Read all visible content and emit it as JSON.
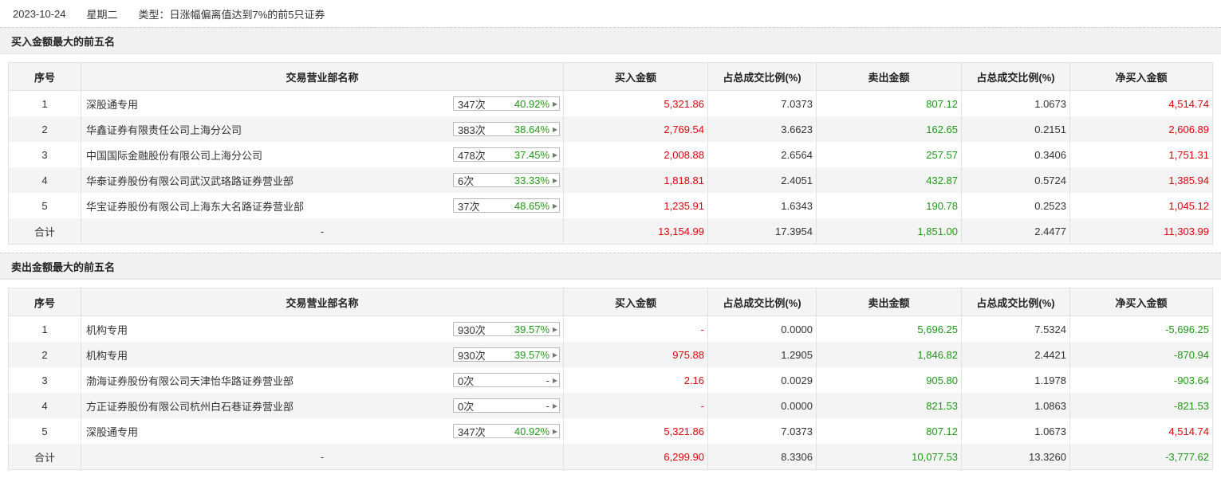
{
  "header": {
    "date": "2023-10-24",
    "weekday": "星期二",
    "type_text": "类型：日涨幅偏离值达到7%的前5只证券"
  },
  "columns": [
    "序号",
    "交易营业部名称",
    "买入金额",
    "占总成交比例(%)",
    "卖出金额",
    "占总成交比例(%)",
    "净买入金额"
  ],
  "buy_section": {
    "title": "买入金额最大的前五名",
    "rows": [
      {
        "seq": "1",
        "name": "深股通专用",
        "count": "347次",
        "pct": "40.92%",
        "buy": "5,321.86",
        "buy_ratio": "7.0373",
        "sell": "807.12",
        "sell_ratio": "1.0673",
        "net": "4,514.74"
      },
      {
        "seq": "2",
        "name": "华鑫证券有限责任公司上海分公司",
        "count": "383次",
        "pct": "38.64%",
        "buy": "2,769.54",
        "buy_ratio": "3.6623",
        "sell": "162.65",
        "sell_ratio": "0.2151",
        "net": "2,606.89"
      },
      {
        "seq": "3",
        "name": "中国国际金融股份有限公司上海分公司",
        "count": "478次",
        "pct": "37.45%",
        "buy": "2,008.88",
        "buy_ratio": "2.6564",
        "sell": "257.57",
        "sell_ratio": "0.3406",
        "net": "1,751.31"
      },
      {
        "seq": "4",
        "name": "华泰证券股份有限公司武汉武珞路证券营业部",
        "count": "6次",
        "pct": "33.33%",
        "buy": "1,818.81",
        "buy_ratio": "2.4051",
        "sell": "432.87",
        "sell_ratio": "0.5724",
        "net": "1,385.94"
      },
      {
        "seq": "5",
        "name": "华宝证券股份有限公司上海东大名路证券营业部",
        "count": "37次",
        "pct": "48.65%",
        "buy": "1,235.91",
        "buy_ratio": "1.6343",
        "sell": "190.78",
        "sell_ratio": "0.2523",
        "net": "1,045.12"
      }
    ],
    "total": {
      "label": "合计",
      "name": "-",
      "buy": "13,154.99",
      "buy_ratio": "17.3954",
      "sell": "1,851.00",
      "sell_ratio": "2.4477",
      "net": "11,303.99"
    }
  },
  "sell_section": {
    "title": "卖出金额最大的前五名",
    "rows": [
      {
        "seq": "1",
        "name": "机构专用",
        "count": "930次",
        "pct": "39.57%",
        "buy": "-",
        "buy_ratio": "0.0000",
        "sell": "5,696.25",
        "sell_ratio": "7.5324",
        "net": "-5,696.25"
      },
      {
        "seq": "2",
        "name": "机构专用",
        "count": "930次",
        "pct": "39.57%",
        "buy": "975.88",
        "buy_ratio": "1.2905",
        "sell": "1,846.82",
        "sell_ratio": "2.4421",
        "net": "-870.94"
      },
      {
        "seq": "3",
        "name": "渤海证券股份有限公司天津怡华路证券营业部",
        "count": "0次",
        "pct": "-",
        "buy": "2.16",
        "buy_ratio": "0.0029",
        "sell": "905.80",
        "sell_ratio": "1.1978",
        "net": "-903.64"
      },
      {
        "seq": "4",
        "name": "方正证券股份有限公司杭州白石巷证券营业部",
        "count": "0次",
        "pct": "-",
        "buy": "-",
        "buy_ratio": "0.0000",
        "sell": "821.53",
        "sell_ratio": "1.0863",
        "net": "-821.53"
      },
      {
        "seq": "5",
        "name": "深股通专用",
        "count": "347次",
        "pct": "40.92%",
        "buy": "5,321.86",
        "buy_ratio": "7.0373",
        "sell": "807.12",
        "sell_ratio": "1.0673",
        "net": "4,514.74"
      }
    ],
    "total": {
      "label": "合计",
      "name": "-",
      "buy": "6,299.90",
      "buy_ratio": "8.3306",
      "sell": "10,077.53",
      "sell_ratio": "13.3260",
      "net": "-3,777.62"
    }
  },
  "colors": {
    "positive": "#e4000b",
    "negative": "#1d9a14",
    "header_bg": "#f1f1f1"
  }
}
